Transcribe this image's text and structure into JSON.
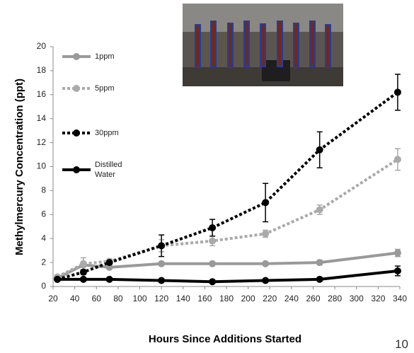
{
  "chart_data": {
    "type": "line",
    "xlabel": "Hours Since Additions Started",
    "ylabel": "Methylmercury Concentration (ppt)",
    "x": [
      24,
      48,
      72,
      120,
      167,
      216,
      266,
      338
    ],
    "series": [
      {
        "name": "1ppm",
        "color": "#999999",
        "style": "solid",
        "values": [
          0.7,
          1.8,
          1.6,
          1.9,
          1.9,
          1.9,
          2.0,
          2.8
        ],
        "errors": [
          0.1,
          0.1,
          0.1,
          0.1,
          0.1,
          0.1,
          0.2,
          0.3
        ]
      },
      {
        "name": "5ppm",
        "color": "#aaaaaa",
        "style": "dotted",
        "values": [
          0.8,
          1.9,
          2.1,
          3.4,
          3.8,
          4.4,
          6.4,
          10.6
        ],
        "errors": [
          0.1,
          0.5,
          0.2,
          0.5,
          0.4,
          0.3,
          0.4,
          0.9
        ]
      },
      {
        "name": "30ppm",
        "color": "#000000",
        "style": "dotted",
        "values": [
          0.6,
          1.2,
          2.0,
          3.4,
          4.9,
          7.0,
          11.4,
          16.2
        ],
        "errors": [
          0.1,
          0.2,
          0.1,
          0.9,
          0.7,
          1.6,
          1.5,
          1.5
        ]
      },
      {
        "name": "Distilled Water",
        "color": "#000000",
        "style": "solid",
        "values": [
          0.6,
          0.6,
          0.6,
          0.5,
          0.4,
          0.5,
          0.6,
          1.3
        ],
        "errors": [
          0.1,
          0.1,
          0.1,
          0.1,
          0.1,
          0.1,
          0.1,
          0.4
        ]
      }
    ],
    "xlim": [
      20,
      340
    ],
    "xticks": [
      20,
      40,
      60,
      80,
      100,
      120,
      140,
      160,
      180,
      200,
      220,
      240,
      260,
      280,
      300,
      320,
      340
    ],
    "ylim": [
      0,
      20
    ],
    "yticks": [
      0,
      2,
      4,
      6,
      8,
      10,
      12,
      14,
      16,
      18,
      20
    ],
    "legend": "upper left"
  },
  "page_number": "10"
}
